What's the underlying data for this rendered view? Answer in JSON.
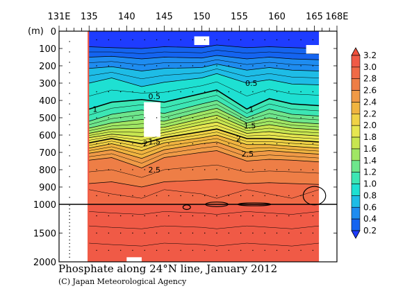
{
  "chart_data": {
    "type": "heatmap",
    "title": "Phosphate along 24°N line, January 2012",
    "credit": "(C) Japan Meteorological Agency",
    "x_axis": {
      "ticks": [
        {
          "value": 131,
          "label": "131E"
        },
        {
          "value": 135,
          "label": "135"
        },
        {
          "value": 140,
          "label": "140"
        },
        {
          "value": 145,
          "label": "145"
        },
        {
          "value": 150,
          "label": "150"
        },
        {
          "value": 155,
          "label": "155"
        },
        {
          "value": 160,
          "label": "160"
        },
        {
          "value": 165,
          "label": "165"
        },
        {
          "value": 168,
          "label": "168E"
        }
      ],
      "range": [
        131,
        168
      ]
    },
    "y_axis": {
      "unit_label": "(m)",
      "ticks": [
        {
          "value": 0,
          "label": "0"
        },
        {
          "value": 100,
          "label": "100"
        },
        {
          "value": 200,
          "label": "200"
        },
        {
          "value": 300,
          "label": "300"
        },
        {
          "value": 400,
          "label": "400"
        },
        {
          "value": 500,
          "label": "500"
        },
        {
          "value": 600,
          "label": "600"
        },
        {
          "value": 700,
          "label": "700"
        },
        {
          "value": 800,
          "label": "800"
        },
        {
          "value": 900,
          "label": "900"
        },
        {
          "value": 1000,
          "label": "1000"
        },
        {
          "value": 1500,
          "label": "1500"
        },
        {
          "value": 2000,
          "label": "2000"
        }
      ],
      "range": [
        0,
        2000
      ],
      "scale_break": 1000,
      "upper_range": [
        0,
        1000
      ],
      "lower_range": [
        1000,
        2000
      ]
    },
    "data_x_range": [
      134.8,
      165.6
    ],
    "colorbar": {
      "labels": [
        "0.2",
        "0.4",
        "0.6",
        "0.8",
        "1.0",
        "1.2",
        "1.4",
        "1.6",
        "1.8",
        "2.0",
        "2.2",
        "2.4",
        "2.6",
        "2.8",
        "3.0",
        "3.2"
      ],
      "levels": [
        0.2,
        0.4,
        0.6,
        0.8,
        1.0,
        1.2,
        1.4,
        1.6,
        1.8,
        2.0,
        2.2,
        2.4,
        2.6,
        2.8,
        3.0,
        3.2
      ],
      "colors": [
        "#1e3cff",
        "#1464f0",
        "#1e8cf0",
        "#1ebce6",
        "#1ee0d2",
        "#3ce6b4",
        "#6ee68c",
        "#a0e664",
        "#c8e650",
        "#e6e650",
        "#f0d246",
        "#f0b440",
        "#f09a46",
        "#ee7e46",
        "#f06a46",
        "#f05a46",
        "#f0503c"
      ]
    },
    "contour_labels": [
      {
        "text": "0.5",
        "lon": 156.6,
        "depth": 300
      },
      {
        "text": "0.5",
        "lon": 143.7,
        "depth": 375
      },
      {
        "text": "1",
        "lon": 135.8,
        "depth": 450
      },
      {
        "text": "1",
        "lon": 156.6,
        "depth": 450
      },
      {
        "text": "1.5",
        "lon": 156.4,
        "depth": 545
      },
      {
        "text": "1.5",
        "lon": 143.7,
        "depth": 638
      },
      {
        "text": "2",
        "lon": 142.5,
        "depth": 648
      },
      {
        "text": "2",
        "lon": 154.9,
        "depth": 620
      },
      {
        "text": "2.5",
        "lon": 156.1,
        "depth": 708
      },
      {
        "text": "2.5",
        "lon": 143.7,
        "depth": 800
      }
    ],
    "depth_profile": [
      {
        "lon": 135,
        "c0_2": 90,
        "c0_4": 150,
        "c0_6": 215,
        "c0_8": 300,
        "c1_0": 450,
        "c1_2": 520,
        "c1_4": 560,
        "c1_6": 590,
        "c1_8": 615,
        "c2_0": 645,
        "c2_2": 675,
        "c2_4": 705,
        "c2_6": 745,
        "c2_8": 880
      },
      {
        "lon": 138,
        "c0_2": 95,
        "c0_4": 145,
        "c0_6": 205,
        "c0_8": 270,
        "c1_0": 410,
        "c1_2": 480,
        "c1_4": 530,
        "c1_6": 565,
        "c1_8": 595,
        "c2_0": 620,
        "c2_2": 650,
        "c2_4": 685,
        "c2_6": 730,
        "c2_8": 870
      },
      {
        "lon": 142,
        "c0_2": 100,
        "c0_4": 160,
        "c0_6": 230,
        "c0_8": 320,
        "c1_0": 395,
        "c1_2": 455,
        "c1_4": 510,
        "c1_6": 560,
        "c1_8": 610,
        "c2_0": 650,
        "c2_2": 690,
        "c2_4": 735,
        "c2_6": 790,
        "c2_8": 900
      },
      {
        "lon": 145,
        "c0_2": 90,
        "c0_4": 150,
        "c0_6": 215,
        "c0_8": 295,
        "c1_0": 410,
        "c1_2": 475,
        "c1_4": 520,
        "c1_6": 555,
        "c1_8": 585,
        "c2_0": 615,
        "c2_2": 645,
        "c2_4": 685,
        "c2_6": 730,
        "c2_8": 870
      },
      {
        "lon": 150,
        "c0_2": 95,
        "c0_4": 155,
        "c0_6": 210,
        "c0_8": 270,
        "c1_0": 360,
        "c1_2": 420,
        "c1_4": 465,
        "c1_6": 505,
        "c1_8": 540,
        "c2_0": 580,
        "c2_2": 615,
        "c2_4": 650,
        "c2_6": 700,
        "c2_8": 860
      },
      {
        "lon": 152,
        "c0_2": 80,
        "c0_4": 140,
        "c0_6": 190,
        "c0_8": 245,
        "c1_0": 340,
        "c1_2": 400,
        "c1_4": 445,
        "c1_6": 485,
        "c1_8": 525,
        "c2_0": 565,
        "c2_2": 600,
        "c2_4": 640,
        "c2_6": 690,
        "c2_8": 855
      },
      {
        "lon": 156,
        "c0_2": 95,
        "c0_4": 160,
        "c0_6": 225,
        "c0_8": 300,
        "c1_0": 450,
        "c1_2": 500,
        "c1_4": 530,
        "c1_6": 560,
        "c1_8": 590,
        "c2_0": 620,
        "c2_2": 655,
        "c2_4": 700,
        "c2_6": 750,
        "c2_8": 880
      },
      {
        "lon": 159,
        "c0_2": 90,
        "c0_4": 150,
        "c0_6": 210,
        "c0_8": 280,
        "c1_0": 390,
        "c1_2": 450,
        "c1_4": 500,
        "c1_6": 540,
        "c1_8": 580,
        "c2_0": 620,
        "c2_2": 655,
        "c2_4": 690,
        "c2_6": 740,
        "c2_8": 875
      },
      {
        "lon": 162,
        "c0_2": 95,
        "c0_4": 160,
        "c0_6": 225,
        "c0_8": 305,
        "c1_0": 420,
        "c1_2": 480,
        "c1_4": 525,
        "c1_6": 560,
        "c1_8": 595,
        "c2_0": 630,
        "c2_2": 665,
        "c2_4": 700,
        "c2_6": 745,
        "c2_8": 880
      },
      {
        "lon": 165.6,
        "c0_2": 100,
        "c0_4": 165,
        "c0_6": 230,
        "c0_8": 310,
        "c1_0": 430,
        "c1_2": 490,
        "c1_4": 535,
        "c1_6": 570,
        "c1_8": 605,
        "c2_0": 640,
        "c2_2": 675,
        "c2_4": 710,
        "c2_6": 755,
        "c2_8": 885
      }
    ],
    "missing_data": [
      {
        "lon_from": 149.0,
        "lon_to": 151.0,
        "depth_from": 30,
        "depth_to": 80
      },
      {
        "lon_from": 142.3,
        "lon_to": 144.5,
        "depth_from": 410,
        "depth_to": 610
      },
      {
        "lon_from": 163.9,
        "lon_to": 165.6,
        "depth_from": 80,
        "depth_to": 130
      },
      {
        "lon_from": 140.0,
        "lon_to": 142.0,
        "depth_from": 1920,
        "depth_to": 2000
      }
    ],
    "closed_contours_deep": [
      {
        "lon": 148.0,
        "depth": 1050,
        "rx": 0.5,
        "ry": 40
      },
      {
        "lon": 152.0,
        "depth": 1000,
        "rx": 1.5,
        "ry": 40
      },
      {
        "lon": 157.0,
        "depth": 1000,
        "rx": 2.2,
        "ry": 25
      },
      {
        "lon": 165.0,
        "depth": 950,
        "rx": 1.5,
        "ry": 60
      }
    ]
  }
}
